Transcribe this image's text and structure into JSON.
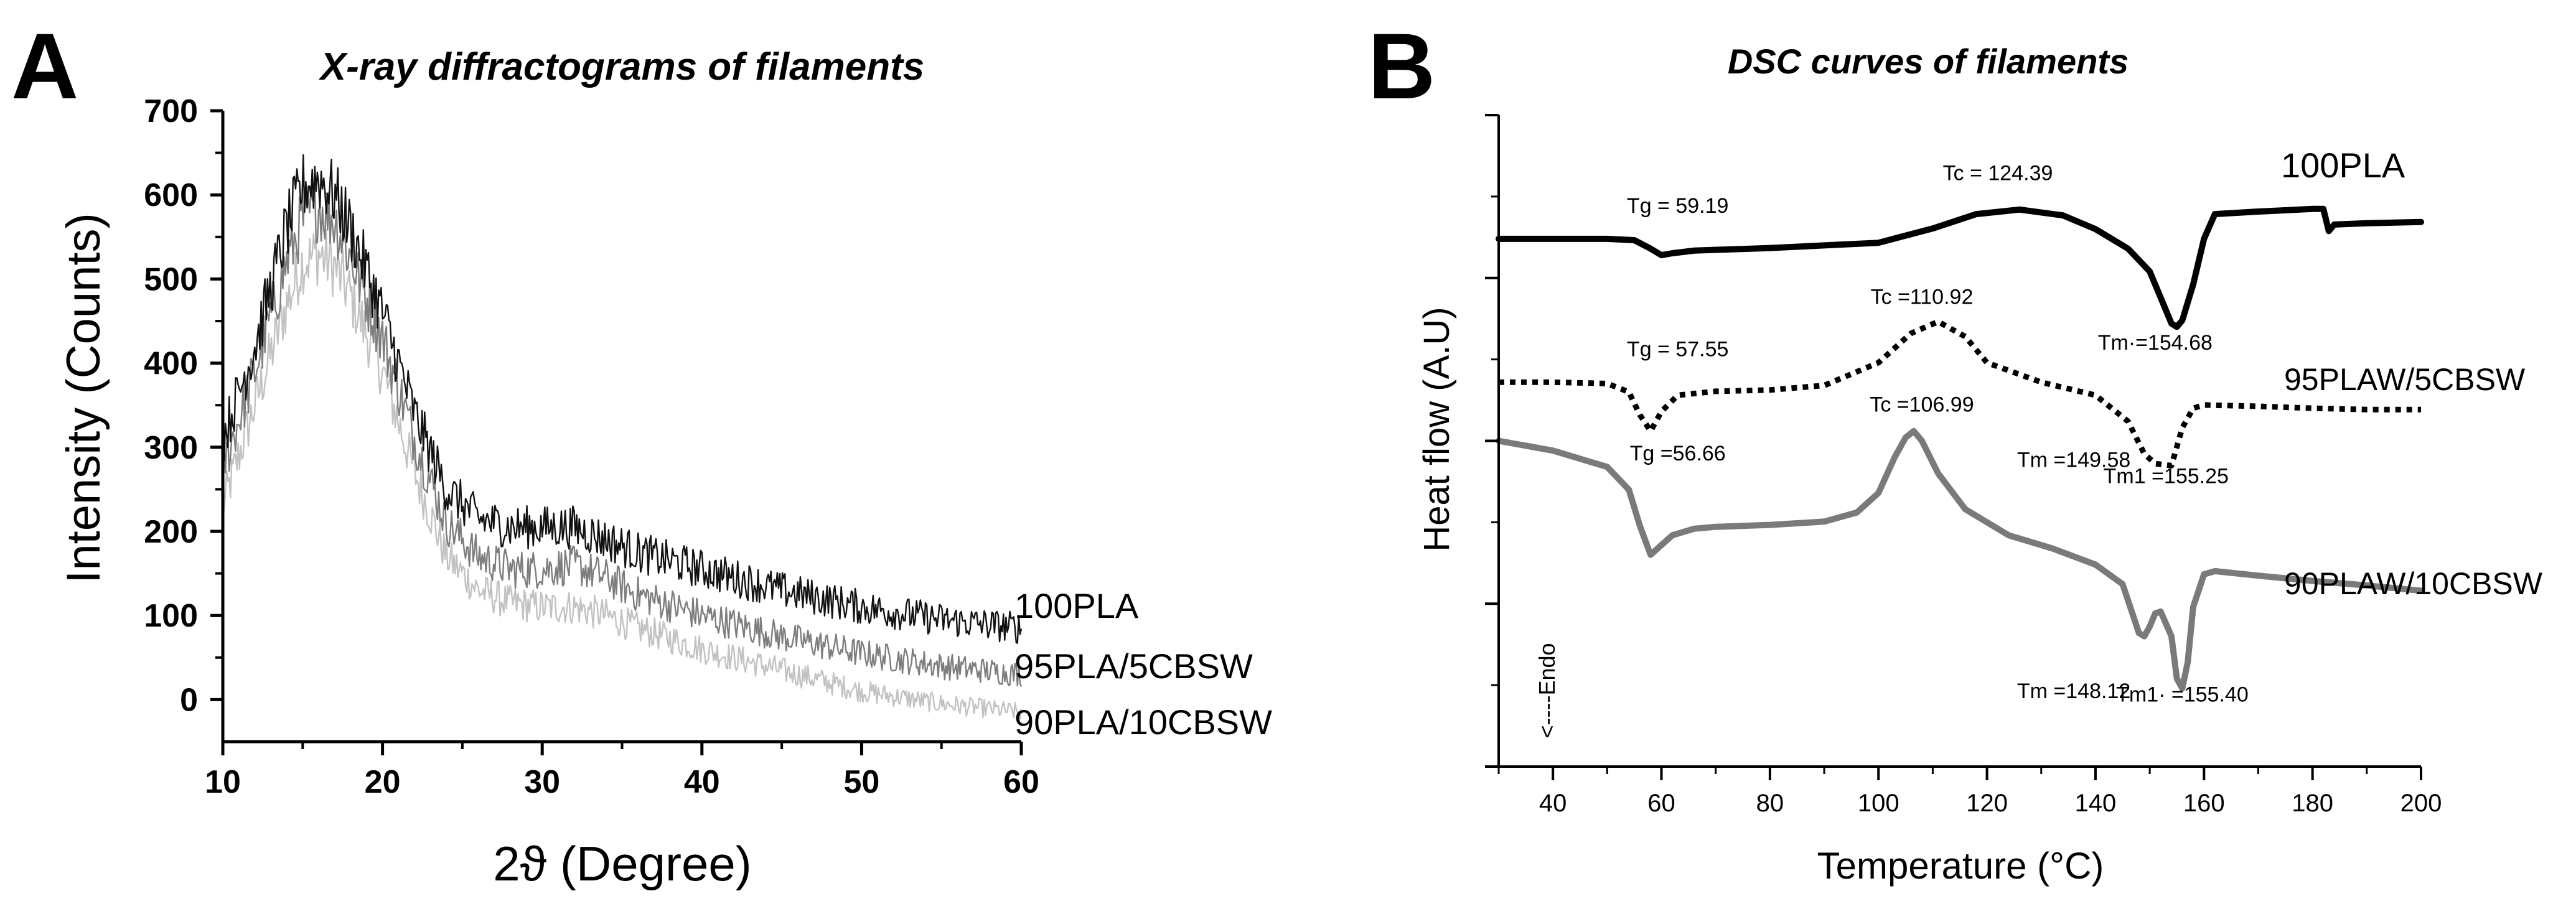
{
  "chart_data": [
    {
      "panel": "A",
      "type": "line",
      "title": "X-ray diffractograms of filaments",
      "xlabel": "2ϑ (Degree)",
      "ylabel": "Intensity (Counts)",
      "xlim": [
        10,
        60
      ],
      "ylim": [
        -50,
        700
      ],
      "xticks": [
        10,
        20,
        30,
        40,
        50,
        60
      ],
      "xtick_labels": [
        "10",
        "20",
        "30",
        "40",
        "50",
        "60"
      ],
      "yticks": [
        0,
        100,
        200,
        300,
        400,
        500,
        600,
        700
      ],
      "ytick_labels": [
        "0",
        "100",
        "200",
        "300",
        "400",
        "500",
        "600",
        "700"
      ],
      "grid": false,
      "series": [
        {
          "name": "100PLA",
          "color": "#111111",
          "x": [
            10,
            12,
            14,
            15,
            16,
            17,
            18,
            20,
            22,
            24,
            26,
            28,
            30,
            32,
            34,
            36,
            40,
            45,
            50,
            55,
            60
          ],
          "y": [
            310,
            420,
            560,
            610,
            620,
            600,
            560,
            460,
            340,
            250,
            215,
            205,
            205,
            205,
            190,
            175,
            155,
            130,
            110,
            95,
            85
          ]
        },
        {
          "name": "95PLA/5CBSW",
          "color": "#7d7d7d",
          "x": [
            10,
            12,
            14,
            15,
            16,
            17,
            18,
            20,
            22,
            24,
            26,
            28,
            30,
            32,
            34,
            36,
            40,
            45,
            50,
            55,
            60
          ],
          "y": [
            275,
            390,
            520,
            570,
            585,
            570,
            525,
            430,
            310,
            210,
            170,
            155,
            155,
            160,
            145,
            125,
            100,
            75,
            55,
            40,
            30
          ]
        },
        {
          "name": "90PLA/10CBSW",
          "color": "#c2c2c2",
          "x": [
            10,
            12,
            14,
            15,
            16,
            17,
            18,
            20,
            22,
            24,
            26,
            28,
            30,
            32,
            34,
            36,
            40,
            45,
            50,
            55,
            60
          ],
          "y": [
            230,
            350,
            470,
            520,
            530,
            515,
            480,
            390,
            270,
            170,
            130,
            115,
            110,
            110,
            100,
            85,
            60,
            35,
            10,
            -5,
            -15
          ]
        }
      ]
    },
    {
      "panel": "B",
      "type": "line",
      "title": "DSC curves of filaments",
      "xlabel": "Temperature (°C)",
      "ylabel": "Heat flow (A.U)",
      "xlim": [
        30,
        200
      ],
      "ylim": [
        0,
        100
      ],
      "xticks": [
        40,
        60,
        80,
        100,
        120,
        140,
        160,
        180,
        200
      ],
      "xtick_labels": [
        "40",
        "60",
        "80",
        "100",
        "120",
        "140",
        "160",
        "180",
        "200"
      ],
      "grid": false,
      "series": [
        {
          "name": "100PLA",
          "color": "#000000",
          "style": "solid",
          "x": [
            30,
            40,
            50,
            55,
            58,
            60,
            62,
            66,
            80,
            100,
            110,
            118,
            126,
            134,
            140,
            146,
            150,
            152,
            154,
            155,
            156,
            158,
            160,
            162,
            170,
            180,
            182,
            183,
            184,
            190,
            200
          ],
          "y": [
            81,
            81,
            81,
            80.8,
            79.5,
            78.5,
            78.8,
            79.2,
            79.6,
            80.4,
            82.6,
            84.8,
            85.5,
            84.6,
            82.5,
            79.5,
            76,
            72,
            68,
            67.5,
            68.5,
            74,
            81,
            84.8,
            85.2,
            85.6,
            85.6,
            82.2,
            83.2,
            83.4,
            83.6
          ]
        },
        {
          "name": "95PLAW/5CBSW",
          "color": "#000000",
          "style": "dotted",
          "x": [
            30,
            40,
            50,
            54,
            56,
            58,
            60,
            63,
            70,
            80,
            90,
            100,
            106,
            111,
            116,
            120,
            130,
            140,
            146,
            149,
            151,
            154,
            156,
            158,
            160,
            170,
            180,
            190,
            200
          ],
          "y": [
            59,
            59,
            58.8,
            57.5,
            54,
            51.5,
            54.5,
            57,
            57.6,
            57.8,
            58.5,
            62,
            66.5,
            68.3,
            66,
            62,
            59,
            57,
            53,
            48,
            46.5,
            46.2,
            52,
            55,
            55.5,
            55.3,
            55,
            54.8,
            54.8
          ]
        },
        {
          "name": "90PLAW/10CBSW",
          "color": "#7a7a7a",
          "style": "solid",
          "x": [
            30,
            40,
            50,
            54,
            56,
            58,
            60,
            62,
            66,
            70,
            80,
            90,
            96,
            100,
            103,
            105,
            106.5,
            108,
            111,
            116,
            124,
            132,
            140,
            145,
            147,
            148,
            149,
            150,
            151,
            152,
            154,
            155,
            156,
            157,
            158,
            160,
            162,
            170,
            180,
            190,
            200
          ],
          "y": [
            50,
            48.5,
            46,
            42.5,
            37,
            32.5,
            34,
            35.5,
            36.5,
            36.8,
            37.1,
            37.6,
            39,
            42,
            47.5,
            50.5,
            51.5,
            50,
            45,
            39.5,
            35.5,
            33.5,
            31,
            28,
            23,
            20.5,
            20,
            21.5,
            23.5,
            23.8,
            20,
            13.5,
            12,
            16,
            24.5,
            29.5,
            30,
            29.3,
            28.5,
            27.8,
            27
          ]
        }
      ],
      "series_labels": [
        "100PLA",
        "95PLAW/5CBSW",
        "90PLAW/10CBSW"
      ],
      "annotations": [
        {
          "id": "tg1",
          "text": "Tg = 59.19",
          "x": 63,
          "y": 85
        },
        {
          "id": "tc1",
          "text": "Tc = 124.39",
          "x": 122,
          "y": 90
        },
        {
          "id": "tm1",
          "text": "Tm·=154.68",
          "x": 151,
          "y": 64
        },
        {
          "id": "tg2",
          "text": "Tg = 57.55",
          "x": 63,
          "y": 63
        },
        {
          "id": "tc2",
          "text": "Tc =110.92",
          "x": 108,
          "y": 71
        },
        {
          "id": "tm2a",
          "text": "Tm =149.58",
          "x": 136,
          "y": 46
        },
        {
          "id": "tm2b",
          "text": "Tm1 =155.25",
          "x": 153,
          "y": 43.5
        },
        {
          "id": "tg3",
          "text": "Tg =56.66",
          "x": 63,
          "y": 47
        },
        {
          "id": "tc3",
          "text": "Tc =106.99",
          "x": 108,
          "y": 54.5
        },
        {
          "id": "tm3a",
          "text": "Tm =148.12",
          "x": 136,
          "y": 10.5
        },
        {
          "id": "tm3b",
          "text": "Tm1· =155.40",
          "x": 156,
          "y": 10
        }
      ],
      "endo_label": "<----Endo"
    }
  ],
  "panel_labels": {
    "a": "A",
    "b": "B"
  }
}
